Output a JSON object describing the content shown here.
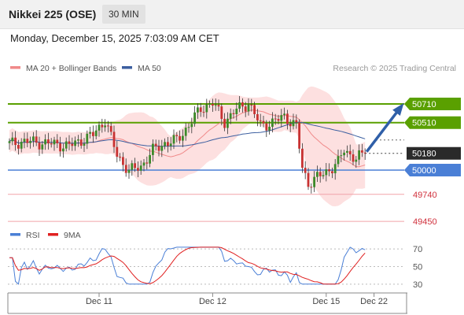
{
  "header": {
    "title": "Nikkei 225 (OSE)",
    "interval": "30 MIN",
    "datetime": "Monday, December 15, 2025 7:03:09 AM CET"
  },
  "chart_data": {
    "type": "candlestick",
    "legend": [
      {
        "label": "MA 20 + Bollinger Bands",
        "color": "#f08a8a"
      },
      {
        "label": "MA 50",
        "color": "#3c5fa0"
      }
    ],
    "credit": "Research © 2025 Trading Central",
    "y_range": [
      49290,
      51150
    ],
    "current_price": 50180,
    "x_ticks": [
      {
        "label": "Dec 11",
        "index": 30
      },
      {
        "label": "Dec 12",
        "index": 68
      },
      {
        "label": "Dec 15",
        "index": 106
      },
      {
        "label": "Dec 22",
        "index": 122
      }
    ],
    "levels": [
      {
        "value": 50710,
        "label": "50710",
        "type": "resistance",
        "color": "#5aa000"
      },
      {
        "value": 50510,
        "label": "50510",
        "type": "resistance",
        "color": "#5aa000"
      },
      {
        "value": 50180,
        "label": "50180",
        "type": "current",
        "color": "#2a2a2a"
      },
      {
        "value": 50000,
        "label": "50000",
        "type": "pivot",
        "color": "#4a7fd6"
      },
      {
        "value": 49740,
        "label": "49740",
        "type": "support",
        "color": "#d0303c"
      },
      {
        "value": 49450,
        "label": "49450",
        "type": "support",
        "color": "#d0303c"
      }
    ],
    "projection": {
      "from": 50180,
      "to": 50710
    },
    "rsi": {
      "legend": [
        {
          "label": "RSI",
          "color": "#4a7fd6"
        },
        {
          "label": "9MA",
          "color": "#e02020"
        }
      ],
      "y_range": [
        20,
        80
      ],
      "ticks": [
        70,
        50,
        30
      ]
    }
  }
}
